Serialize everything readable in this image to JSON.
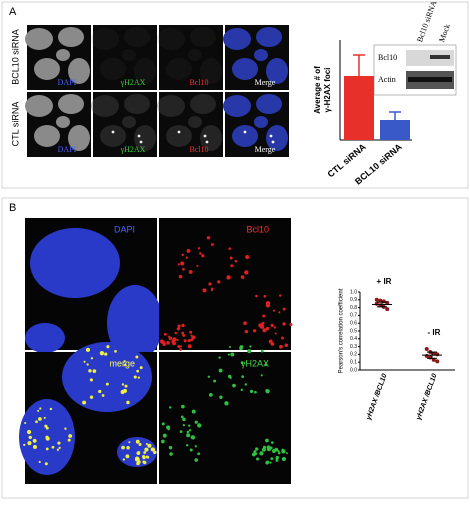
{
  "panel_a": {
    "label": "A",
    "row_labels": [
      "BCL10 siRNA",
      "CTL siRNA"
    ],
    "column_labels": [
      "DAPI",
      "γH2AX",
      "Bcl10",
      "Merge"
    ],
    "blot": {
      "lanes": [
        "Bcl10 siRNA",
        "Mock"
      ],
      "bands": [
        "Bcl10",
        "Actin"
      ]
    }
  },
  "panel_b": {
    "label": "B",
    "image_labels": [
      "DAPI",
      "Bcl10",
      "merge",
      "γH2AX"
    ]
  },
  "chart_data": [
    {
      "type": "bar",
      "ylabel_lines": [
        "Average # of",
        "γ-H2AX foci"
      ],
      "categories": [
        "CTL siRNA",
        "BCL10 siRNA"
      ],
      "values": [
        6.4,
        2.0
      ],
      "errors": [
        2.1,
        0.8
      ],
      "colors": [
        "#e8302a",
        "#3a59c8"
      ],
      "ylim": [
        0,
        10
      ]
    },
    {
      "type": "strip",
      "ylabel": "Pearson's correlation coefficient",
      "categories": [
        "γH2AX /BCL10",
        "γH2AX /BCL10"
      ],
      "annotations": [
        "+ IR",
        "- IR"
      ],
      "points": [
        [
          0.9,
          0.89,
          0.88,
          0.86,
          0.85,
          0.83,
          0.81,
          0.78
        ],
        [
          0.27,
          0.23,
          0.21,
          0.2,
          0.18,
          0.16,
          0.13,
          0.11
        ]
      ],
      "means": [
        0.84,
        0.19
      ],
      "errors": [
        0.03,
        0.04
      ],
      "color": "#8b1a1a",
      "ylim": [
        0,
        1
      ],
      "yticks": [
        {
          "value": 0,
          "label": "0.0"
        },
        {
          "value": 0.1,
          "label": "0.1"
        },
        {
          "value": 0.2,
          "label": "0.2"
        },
        {
          "value": 0.3,
          "label": "0.3"
        },
        {
          "value": 0.4,
          "label": "0.4"
        },
        {
          "value": 0.5,
          "label": "0.5"
        },
        {
          "value": 0.6,
          "label": "0.6"
        },
        {
          "value": 0.7,
          "label": "0.7"
        },
        {
          "value": 0.8,
          "label": "0.8"
        },
        {
          "value": 0.9,
          "label": "0.9"
        },
        {
          "value": 1,
          "label": "1.0"
        }
      ]
    }
  ]
}
